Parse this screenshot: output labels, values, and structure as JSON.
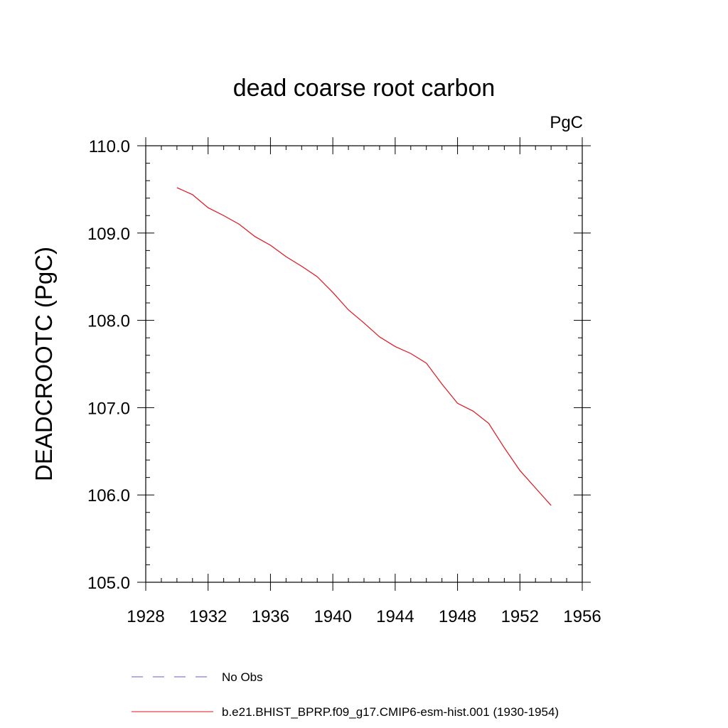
{
  "chart_data": {
    "type": "line",
    "title": "dead coarse root carbon",
    "units_label": "PgC",
    "xlabel": "",
    "ylabel": "DEADCROOTC  (PgC)",
    "xlim": [
      1928,
      1956
    ],
    "ylim": [
      105.0,
      110.0
    ],
    "x_ticks": [
      1928,
      1932,
      1936,
      1940,
      1944,
      1948,
      1952,
      1956
    ],
    "x_tick_labels": [
      "1928",
      "1932",
      "1936",
      "1940",
      "1944",
      "1948",
      "1952",
      "1956"
    ],
    "y_ticks": [
      105.0,
      106.0,
      107.0,
      108.0,
      109.0,
      110.0
    ],
    "y_tick_labels": [
      "105.0",
      "106.0",
      "107.0",
      "108.0",
      "109.0",
      "110.0"
    ],
    "grid": false,
    "legend_position": "bottom",
    "series": [
      {
        "name": "No Obs",
        "style": "dashed",
        "color": "#6a5acd",
        "x": [],
        "y": []
      },
      {
        "name": "b.e21.BHIST_BPRP.f09_g17.CMIP6-esm-hist.001 (1930-1954)",
        "style": "solid",
        "color": "#e0141e",
        "x": [
          1930,
          1931,
          1932,
          1933,
          1934,
          1935,
          1936,
          1937,
          1938,
          1939,
          1940,
          1941,
          1942,
          1943,
          1944,
          1945,
          1946,
          1947,
          1948,
          1949,
          1950,
          1951,
          1952,
          1953,
          1954
        ],
        "y": [
          109.52,
          109.44,
          109.29,
          109.2,
          109.1,
          108.96,
          108.86,
          108.73,
          108.62,
          108.5,
          108.32,
          108.12,
          107.97,
          107.81,
          107.7,
          107.62,
          107.51,
          107.27,
          107.05,
          106.96,
          106.82,
          106.54,
          106.28,
          106.08,
          105.88
        ]
      }
    ]
  }
}
